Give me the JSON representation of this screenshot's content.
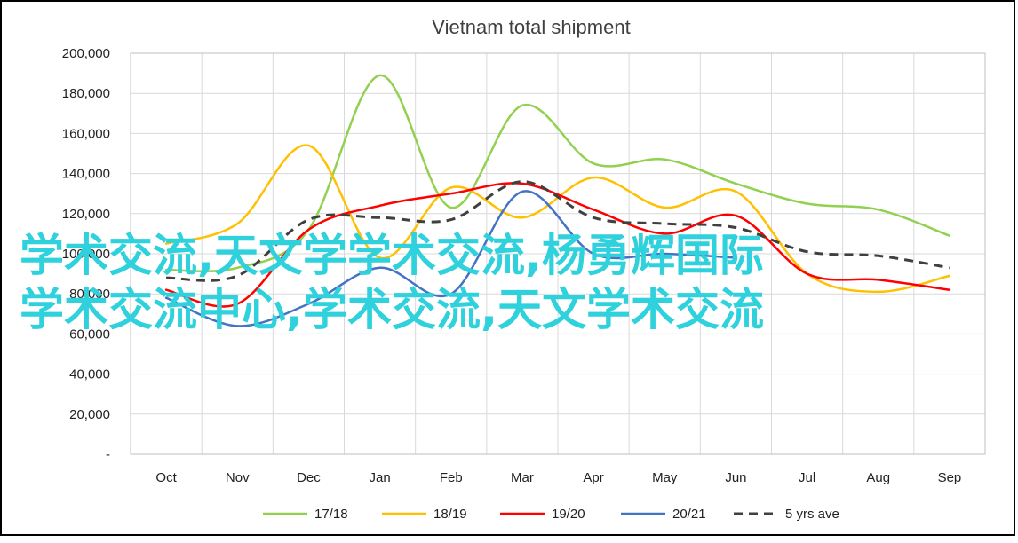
{
  "chart_data": {
    "type": "line",
    "title": "Vietnam total shipment",
    "xlabel": "",
    "ylabel": "",
    "categories": [
      "Oct",
      "Nov",
      "Dec",
      "Jan",
      "Feb",
      "Mar",
      "Apr",
      "May",
      "Jun",
      "Jul",
      "Aug",
      "Sep"
    ],
    "ylim": [
      0,
      200000
    ],
    "ytick_labels": [
      "-",
      "20,000",
      "40,000",
      "60,000",
      "80,000",
      "100,000",
      "120,000",
      "140,000",
      "160,000",
      "180,000",
      "200,000"
    ],
    "grid": true,
    "legend_position": "bottom",
    "series": [
      {
        "name": "17/18",
        "color": "#92d050",
        "dash": false,
        "values": [
          92000,
          93000,
          112000,
          189000,
          123000,
          174000,
          145000,
          147000,
          135000,
          125000,
          122000,
          109000
        ]
      },
      {
        "name": "18/19",
        "color": "#ffc000",
        "dash": false,
        "values": [
          105000,
          115000,
          154000,
          98000,
          133000,
          118000,
          138000,
          123000,
          131000,
          90000,
          81000,
          89000
        ]
      },
      {
        "name": "19/20",
        "color": "#ff0000",
        "dash": false,
        "values": [
          82000,
          75000,
          112000,
          124000,
          130000,
          135000,
          122000,
          110000,
          119000,
          90000,
          87000,
          82000
        ]
      },
      {
        "name": "20/21",
        "color": "#4472c4",
        "dash": false,
        "values": [
          78000,
          64000,
          75000,
          93000,
          80000,
          131000,
          100000,
          100000,
          98000,
          null,
          null,
          null
        ]
      },
      {
        "name": "5 yrs ave",
        "color": "#404040",
        "dash": true,
        "values": [
          88000,
          89000,
          117000,
          118000,
          117000,
          136000,
          118000,
          115000,
          113000,
          101000,
          99000,
          93000
        ]
      }
    ]
  },
  "watermark": {
    "line1": "学术交流,天文学学术交流,杨勇辉国际",
    "line2": "学术交流中心,学术交流,天文学术交流"
  }
}
